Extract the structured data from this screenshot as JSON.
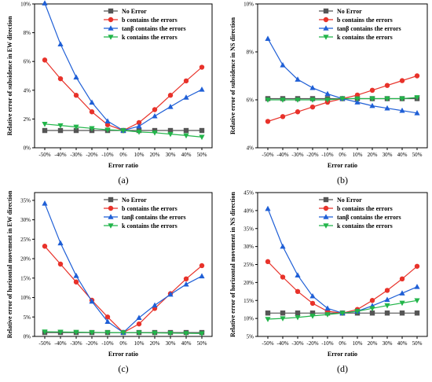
{
  "colors": {
    "no_error": "#555555",
    "b": "#e8322a",
    "tan": "#1f5fd6",
    "k": "#22b54a"
  },
  "series_names": [
    "No Error",
    "b contains the errors",
    "tanβ contains the errors",
    "k contains the errors"
  ],
  "chart_data": [
    {
      "type": "line",
      "panel_label": "(a)",
      "xlabel": "Error ratio",
      "ylabel": "Relative error of subsidence in EW direction",
      "categories": [
        "-50%",
        "-40%",
        "-30%",
        "-20%",
        "-10%",
        "0%",
        "10%",
        "20%",
        "30%",
        "40%",
        "50%"
      ],
      "ylim": [
        0,
        10
      ],
      "yticks": [
        0,
        2,
        4,
        6,
        8,
        10
      ],
      "ytick_labels": [
        "0%",
        "2%",
        "4%",
        "6%",
        "8%",
        "10%"
      ],
      "legend": "top-right",
      "series": [
        {
          "name": "No Error",
          "marker": "square",
          "values": [
            1.2,
            1.2,
            1.2,
            1.2,
            1.2,
            1.2,
            1.2,
            1.2,
            1.2,
            1.2,
            1.2
          ]
        },
        {
          "name": "b contains the errors",
          "marker": "circle",
          "values": [
            6.1,
            4.8,
            3.65,
            2.5,
            1.6,
            1.2,
            1.75,
            2.65,
            3.65,
            4.65,
            5.6
          ]
        },
        {
          "name": "tanβ contains the errors",
          "marker": "triangle-up",
          "values": [
            10.05,
            7.2,
            4.9,
            3.15,
            1.85,
            1.2,
            1.5,
            2.2,
            2.85,
            3.5,
            4.05
          ]
        },
        {
          "name": "k contains the errors",
          "marker": "triangle-down",
          "values": [
            1.65,
            1.55,
            1.45,
            1.35,
            1.25,
            1.2,
            1.1,
            1.05,
            0.95,
            0.85,
            0.75
          ]
        }
      ]
    },
    {
      "type": "line",
      "panel_label": "(b)",
      "xlabel": "Error ratio",
      "ylabel": "Relative error of subsidence in NS direction",
      "categories": [
        "-50%",
        "-40%",
        "-30%",
        "-20%",
        "-10%",
        "0%",
        "10%",
        "20%",
        "30%",
        "40%",
        "50%"
      ],
      "ylim": [
        4,
        10
      ],
      "yticks": [
        4,
        6,
        8,
        10
      ],
      "ytick_labels": [
        "4%",
        "6%",
        "8%",
        "10%"
      ],
      "legend": "top-right",
      "series": [
        {
          "name": "No Error",
          "marker": "square",
          "values": [
            6.05,
            6.05,
            6.05,
            6.05,
            6.05,
            6.05,
            6.05,
            6.05,
            6.05,
            6.05,
            6.05
          ]
        },
        {
          "name": "b contains the errors",
          "marker": "circle",
          "values": [
            5.1,
            5.3,
            5.5,
            5.7,
            5.9,
            6.05,
            6.2,
            6.4,
            6.6,
            6.8,
            7.0
          ]
        },
        {
          "name": "tanβ contains the errors",
          "marker": "triangle-up",
          "values": [
            8.55,
            7.45,
            6.85,
            6.5,
            6.25,
            6.05,
            5.9,
            5.75,
            5.65,
            5.55,
            5.45
          ]
        },
        {
          "name": "k contains the errors",
          "marker": "triangle-down",
          "values": [
            6.0,
            6.0,
            6.0,
            6.0,
            6.0,
            6.05,
            6.05,
            6.05,
            6.05,
            6.05,
            6.1
          ]
        }
      ]
    },
    {
      "type": "line",
      "panel_label": "(c)",
      "xlabel": "Error ratio",
      "ylabel": "Relative error of horizontal movement in EW direction",
      "categories": [
        "-50%",
        "-40%",
        "-30%",
        "-20%",
        "-10%",
        "0%",
        "10%",
        "20%",
        "30%",
        "40%",
        "50%"
      ],
      "ylim": [
        0,
        37
      ],
      "yticks": [
        0,
        5,
        10,
        15,
        20,
        25,
        30,
        35
      ],
      "ytick_labels": [
        "0%",
        "5%",
        "10%",
        "15%",
        "20%",
        "25%",
        "30%",
        "35%"
      ],
      "legend": "top-right",
      "series": [
        {
          "name": "No Error",
          "marker": "square",
          "values": [
            1.0,
            1.0,
            1.0,
            1.0,
            1.0,
            1.0,
            1.0,
            1.0,
            1.0,
            1.0,
            1.0
          ]
        },
        {
          "name": "b contains the errors",
          "marker": "circle",
          "values": [
            23.2,
            18.6,
            14.0,
            9.3,
            5.0,
            1.0,
            3.2,
            7.2,
            11.0,
            14.8,
            18.2
          ]
        },
        {
          "name": "tanβ contains the errors",
          "marker": "triangle-up",
          "values": [
            34.2,
            24.0,
            15.6,
            9.0,
            3.8,
            1.0,
            4.8,
            8.0,
            10.8,
            13.4,
            15.5
          ]
        },
        {
          "name": "k contains the errors",
          "marker": "triangle-down",
          "values": [
            1.2,
            1.15,
            1.1,
            1.05,
            1.0,
            1.0,
            0.95,
            0.9,
            0.85,
            0.8,
            0.75
          ]
        }
      ]
    },
    {
      "type": "line",
      "panel_label": "(d)",
      "xlabel": "Error ratio",
      "ylabel": "Relative error of horizontal movement in NS direction",
      "categories": [
        "-50%",
        "-40%",
        "-30%",
        "-20%",
        "-10%",
        "0%",
        "10%",
        "20%",
        "30%",
        "40%",
        "50%"
      ],
      "ylim": [
        5,
        45
      ],
      "yticks": [
        5,
        10,
        15,
        20,
        25,
        30,
        35,
        40,
        45
      ],
      "ytick_labels": [
        "5%",
        "10%",
        "15%",
        "20%",
        "25%",
        "30%",
        "35%",
        "40%",
        "45%"
      ],
      "legend": "top-right",
      "series": [
        {
          "name": "No Error",
          "marker": "square",
          "values": [
            11.5,
            11.5,
            11.5,
            11.5,
            11.5,
            11.5,
            11.5,
            11.5,
            11.5,
            11.5,
            11.5
          ]
        },
        {
          "name": "b contains the errors",
          "marker": "circle",
          "values": [
            25.8,
            21.5,
            17.5,
            14.2,
            12.0,
            11.5,
            12.5,
            15.0,
            17.8,
            21.0,
            24.5
          ]
        },
        {
          "name": "tanβ contains the errors",
          "marker": "triangle-up",
          "values": [
            40.5,
            30.0,
            22.0,
            16.2,
            12.8,
            11.5,
            12.0,
            13.5,
            15.2,
            17.0,
            18.8
          ]
        },
        {
          "name": "k contains the errors",
          "marker": "triangle-down",
          "values": [
            9.8,
            10.0,
            10.3,
            10.7,
            11.1,
            11.5,
            12.0,
            12.8,
            13.6,
            14.3,
            15.0
          ]
        }
      ]
    }
  ]
}
